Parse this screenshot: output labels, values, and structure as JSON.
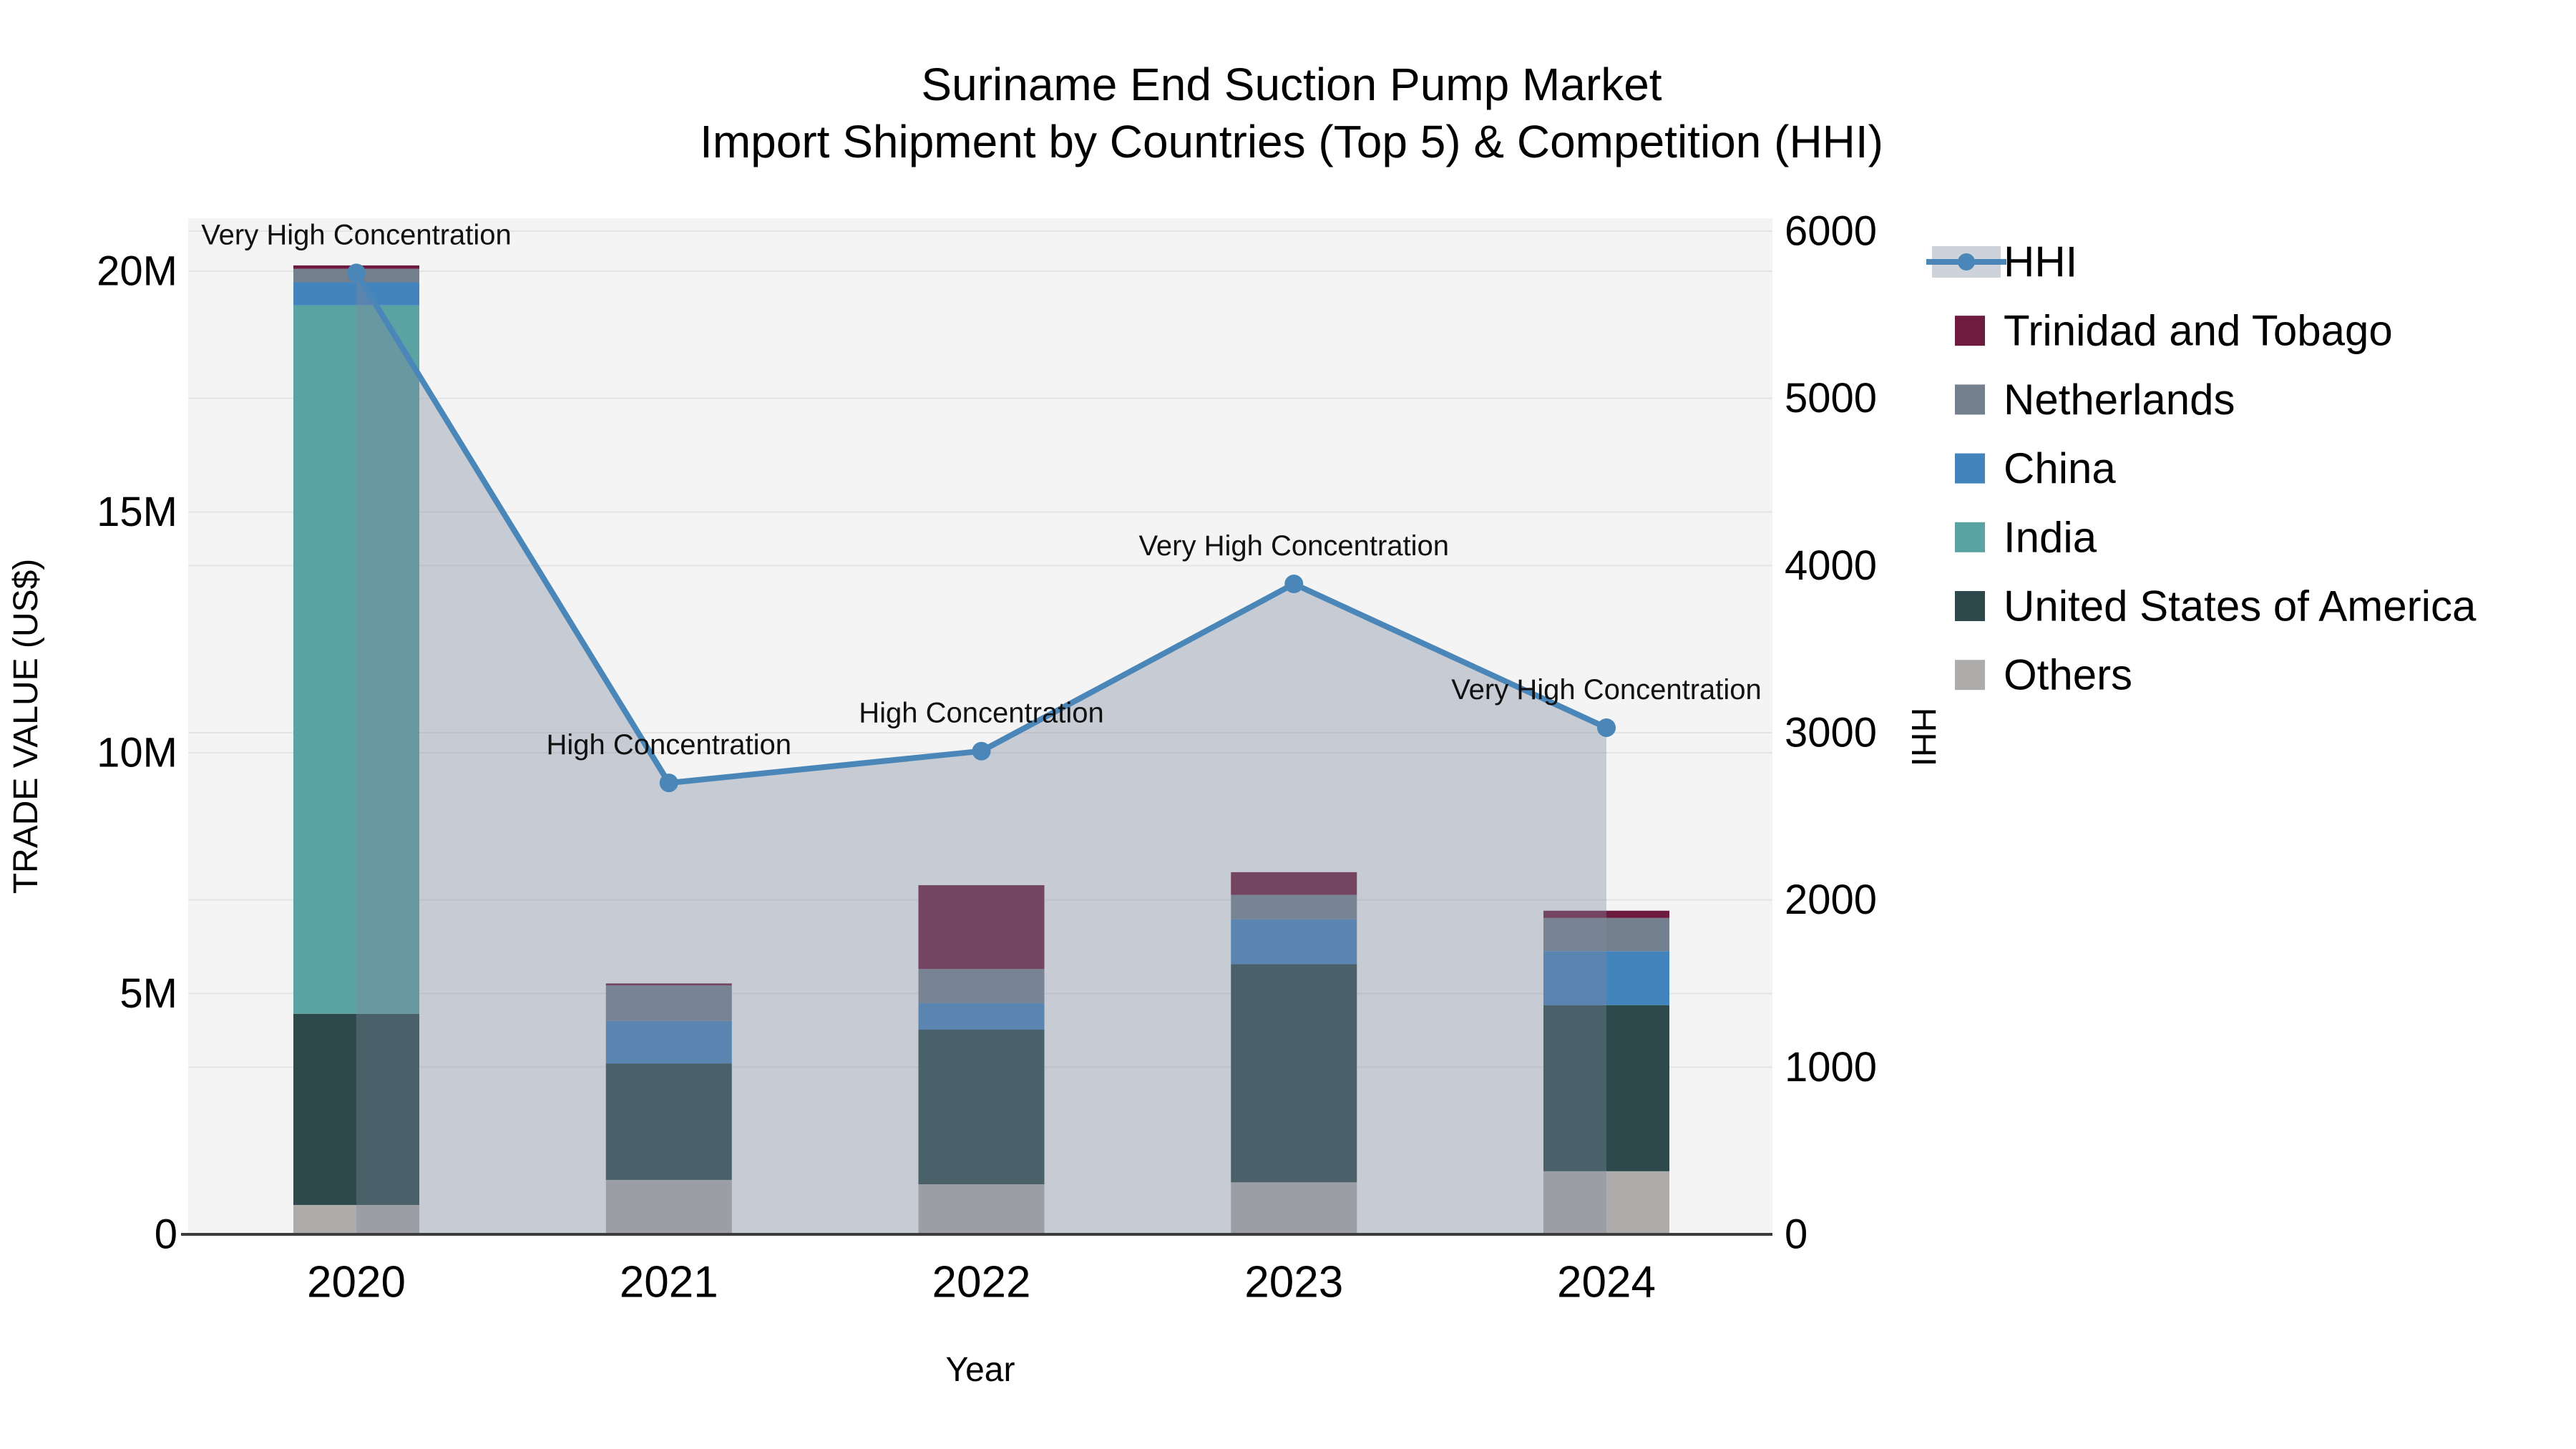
{
  "title": {
    "line1": "Suriname End Suction Pump Market",
    "line2": "Import Shipment by Countries (Top 5) & Competition (HHI)"
  },
  "axis_titles": {
    "left": "TRADE VALUE (US$)",
    "right": "HHI",
    "x": "Year"
  },
  "colors": {
    "hhi_line": "#4a86b8",
    "area_fill": "rgba(126,137,159,0.38)",
    "plot_bg": "#f4f4f4",
    "grid": "#e4e4e4",
    "axis_line": "#3c3c3c",
    "trinidad_and_tobago": "#6d1c3f",
    "netherlands": "#75808e",
    "china": "#4384bc",
    "india": "#5ba3a2",
    "united_states_of_america": "#2d494b",
    "others": "#aeacaa"
  },
  "legend": [
    {
      "label": "HHI",
      "type": "line",
      "color": "#4a86b8"
    },
    {
      "label": "Trinidad and Tobago",
      "type": "swatch",
      "color": "#6d1c3f"
    },
    {
      "label": "Netherlands",
      "type": "swatch",
      "color": "#75808e"
    },
    {
      "label": "China",
      "type": "swatch",
      "color": "#4384bc"
    },
    {
      "label": "India",
      "type": "swatch",
      "color": "#5ba3a2"
    },
    {
      "label": "United States of America",
      "type": "swatch",
      "color": "#2d494b"
    },
    {
      "label": "Others",
      "type": "swatch",
      "color": "#aeacaa"
    }
  ],
  "chart_data": {
    "type": "combo stacked-bar + line",
    "title": "Suriname End Suction Pump Market — Import Shipment by Countries (Top 5) & Competition (HHI)",
    "categories": [
      "2020",
      "2021",
      "2022",
      "2023",
      "2024"
    ],
    "bar_value_unit": "US$ millions",
    "series": [
      {
        "name": "Others",
        "color": "#aeacaa",
        "values": [
          0.61,
          1.13,
          1.04,
          1.08,
          1.31
        ]
      },
      {
        "name": "United States of America",
        "color": "#2d494b",
        "values": [
          3.97,
          2.42,
          3.21,
          4.53,
          3.45
        ]
      },
      {
        "name": "India",
        "color": "#5ba3a2",
        "values": [
          14.71,
          0,
          0,
          0,
          0
        ]
      },
      {
        "name": "China",
        "color": "#4384bc",
        "values": [
          0.48,
          0.88,
          0.55,
          0.93,
          1.12
        ]
      },
      {
        "name": "Netherlands",
        "color": "#75808e",
        "values": [
          0.28,
          0.74,
          0.71,
          0.51,
          0.69
        ]
      },
      {
        "name": "Trinidad and Tobago",
        "color": "#6d1c3f",
        "values": [
          0.07,
          0.04,
          1.74,
          0.47,
          0.15
        ]
      }
    ],
    "line_series": {
      "name": "HHI",
      "color": "#4a86b8",
      "values": [
        5750,
        2700,
        2890,
        3890,
        3030
      ]
    },
    "annotations": [
      {
        "category": "2020",
        "text": "Very High Concentration"
      },
      {
        "category": "2021",
        "text": "High Concentration"
      },
      {
        "category": "2022",
        "text": "High Concentration"
      },
      {
        "category": "2023",
        "text": "Very High Concentration"
      },
      {
        "category": "2024",
        "text": "Very High Concentration"
      }
    ],
    "left_axis": {
      "label": "TRADE VALUE (US$)",
      "range_millions": [
        0,
        21.1
      ],
      "ticks": [
        {
          "label": "0",
          "value": 0
        },
        {
          "label": "5M",
          "value": 5
        },
        {
          "label": "10M",
          "value": 10
        },
        {
          "label": "15M",
          "value": 15
        },
        {
          "label": "20M",
          "value": 20
        }
      ]
    },
    "right_axis": {
      "label": "HHI",
      "range": [
        0,
        6076
      ],
      "ticks": [
        {
          "label": "0",
          "value": 0
        },
        {
          "label": "1000",
          "value": 1000
        },
        {
          "label": "2000",
          "value": 2000
        },
        {
          "label": "3000",
          "value": 3000
        },
        {
          "label": "4000",
          "value": 4000
        },
        {
          "label": "5000",
          "value": 5000
        },
        {
          "label": "6000",
          "value": 6000
        }
      ]
    },
    "x_axis": {
      "label": "Year"
    },
    "legend_position": "right",
    "grid": true
  }
}
